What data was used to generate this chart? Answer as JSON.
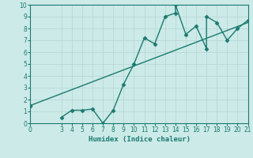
{
  "xlabel": "Humidex (Indice chaleur)",
  "data_x": [
    3,
    4,
    5,
    6,
    7,
    8,
    9,
    10,
    11,
    12,
    13,
    14,
    14,
    15,
    16,
    17,
    17,
    18,
    19,
    20,
    21
  ],
  "data_y": [
    0.5,
    1.1,
    1.1,
    1.2,
    0.0,
    1.1,
    3.3,
    5.0,
    7.2,
    6.7,
    9.0,
    9.3,
    10.0,
    7.5,
    8.2,
    6.3,
    9.0,
    8.5,
    7.0,
    8.0,
    8.7
  ],
  "trend_x": [
    0,
    21
  ],
  "trend_y": [
    1.5,
    8.5
  ],
  "start_marker_x": 0,
  "start_marker_y": 1.5,
  "line_color": "#1a7a6e",
  "bg_color": "#cceae8",
  "grid_color": "#b8d8d6",
  "xlim": [
    0,
    21
  ],
  "ylim": [
    0,
    10
  ],
  "xticks": [
    0,
    3,
    4,
    5,
    6,
    7,
    8,
    9,
    10,
    11,
    12,
    13,
    14,
    15,
    16,
    17,
    18,
    19,
    20,
    21
  ],
  "yticks": [
    0,
    1,
    2,
    3,
    4,
    5,
    6,
    7,
    8,
    9,
    10
  ],
  "marker": "D",
  "marker_size": 2.5,
  "line_width": 1.0,
  "tick_fontsize": 5.5,
  "xlabel_fontsize": 6.5
}
